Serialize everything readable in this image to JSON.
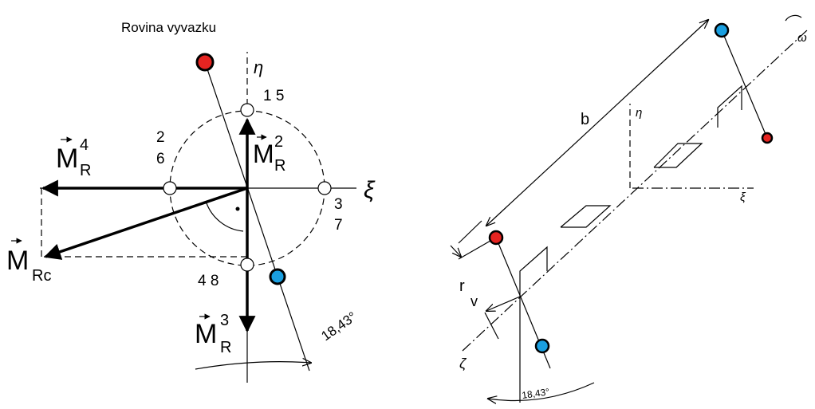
{
  "left": {
    "plane_label": "Rovina vyvazku",
    "eta": "η",
    "xi": "ξ",
    "points": [
      "1 5",
      "2",
      "6",
      "3",
      "7",
      "4 8"
    ],
    "vectors": [
      {
        "symbol": "M",
        "sup": "4",
        "sub": "R"
      },
      {
        "symbol": "M",
        "sup": "2",
        "sub": "R"
      },
      {
        "symbol": "M",
        "sub": "Rc"
      },
      {
        "symbol": "M",
        "sup": "3",
        "sub": "R"
      }
    ],
    "angle": "18,43°"
  },
  "right": {
    "b": "b",
    "eta": "η",
    "xi": "ξ",
    "omega": "ω",
    "r": "r",
    "r_sub": "v",
    "zeta": "ζ",
    "angle": "18,43°"
  }
}
